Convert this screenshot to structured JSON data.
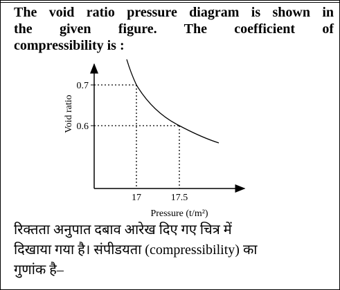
{
  "question_en": {
    "lines": [
      "The void ratio pressure diagram is shown in",
      "the given figure. The coefficient of",
      "compressibility is :"
    ]
  },
  "figure": {
    "y_axis_label": "Void ratio",
    "x_axis_label": "Pressure (t/m²)",
    "y_ticks": [
      "0.7",
      "0.6"
    ],
    "x_ticks": [
      "17",
      "17.5"
    ]
  },
  "question_hi": {
    "lines": [
      "रिक्तता अनुपात दबाव आरेख दिए गए चित्र में",
      "दिखाया गया है। संपीडयता (compressibility) का",
      "गुणांक है–"
    ]
  }
}
